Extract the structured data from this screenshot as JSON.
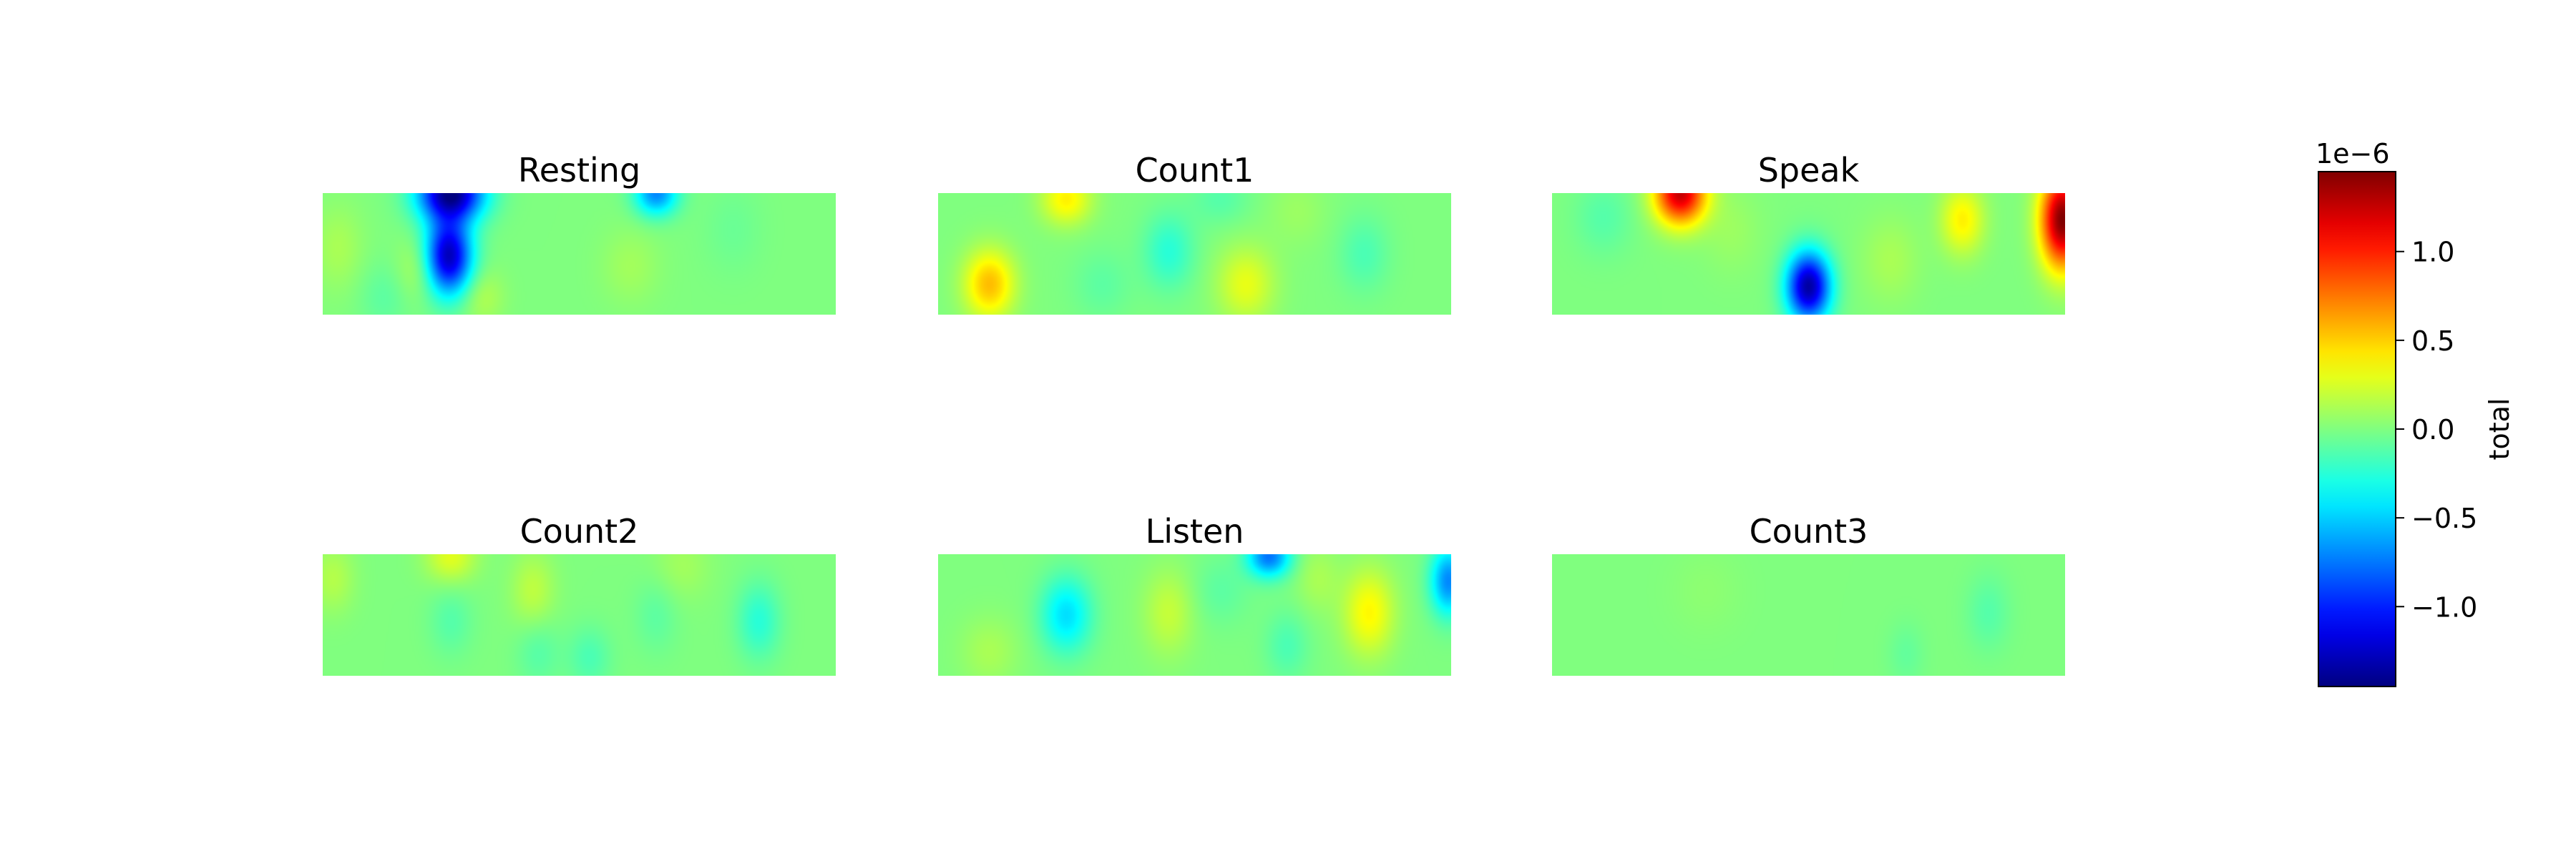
{
  "chart_data": {
    "type": "heatmap",
    "colormap": "jet",
    "value_range": [
      -1.45e-06,
      1.45e-06
    ],
    "layout": {
      "rows": 2,
      "cols": 3
    },
    "panels": [
      {
        "title": "Resting",
        "blobs": [
          {
            "x": 0.25,
            "y": 0.0,
            "value": -1.4e-06,
            "sx": 0.045,
            "sy": 0.16
          },
          {
            "x": 0.245,
            "y": 0.52,
            "value": -1.3e-06,
            "sx": 0.032,
            "sy": 0.22
          },
          {
            "x": 0.65,
            "y": 0.0,
            "value": -7e-07,
            "sx": 0.03,
            "sy": 0.13
          },
          {
            "x": 0.19,
            "y": 0.62,
            "value": 1.8e-07,
            "sx": 0.03,
            "sy": 0.18
          },
          {
            "x": 0.31,
            "y": 0.85,
            "value": 1.5e-07,
            "sx": 0.03,
            "sy": 0.16
          },
          {
            "x": 0.03,
            "y": 0.45,
            "value": 1.2e-07,
            "sx": 0.035,
            "sy": 0.25
          },
          {
            "x": 0.6,
            "y": 0.6,
            "value": 1e-07,
            "sx": 0.04,
            "sy": 0.22
          },
          {
            "x": 0.12,
            "y": 0.85,
            "value": -1e-07,
            "sx": 0.035,
            "sy": 0.2
          },
          {
            "x": 0.8,
            "y": 0.3,
            "value": -6e-08,
            "sx": 0.04,
            "sy": 0.25
          }
        ]
      },
      {
        "title": "Count1",
        "blobs": [
          {
            "x": 0.1,
            "y": 0.75,
            "value": 5.5e-07,
            "sx": 0.035,
            "sy": 0.2
          },
          {
            "x": 0.25,
            "y": 0.05,
            "value": 4e-07,
            "sx": 0.035,
            "sy": 0.15
          },
          {
            "x": 0.6,
            "y": 0.75,
            "value": 3e-07,
            "sx": 0.04,
            "sy": 0.22
          },
          {
            "x": 0.45,
            "y": 0.48,
            "value": -2.5e-07,
            "sx": 0.035,
            "sy": 0.22
          },
          {
            "x": 0.83,
            "y": 0.5,
            "value": -1.5e-07,
            "sx": 0.035,
            "sy": 0.22
          },
          {
            "x": 0.55,
            "y": 0.05,
            "value": -1.2e-07,
            "sx": 0.04,
            "sy": 0.15
          },
          {
            "x": 0.32,
            "y": 0.75,
            "value": -1e-07,
            "sx": 0.04,
            "sy": 0.2
          },
          {
            "x": 0.7,
            "y": 0.15,
            "value": 8e-08,
            "sx": 0.04,
            "sy": 0.2
          }
        ]
      },
      {
        "title": "Speak",
        "blobs": [
          {
            "x": 0.25,
            "y": 0.0,
            "value": 1.25e-06,
            "sx": 0.035,
            "sy": 0.18
          },
          {
            "x": 0.995,
            "y": 0.22,
            "value": 1.45e-06,
            "sx": 0.03,
            "sy": 0.28
          },
          {
            "x": 0.5,
            "y": 0.77,
            "value": -1.35e-06,
            "sx": 0.03,
            "sy": 0.2
          },
          {
            "x": 0.8,
            "y": 0.22,
            "value": 4e-07,
            "sx": 0.03,
            "sy": 0.2
          },
          {
            "x": 0.66,
            "y": 0.55,
            "value": 1.2e-07,
            "sx": 0.04,
            "sy": 0.25
          },
          {
            "x": 0.1,
            "y": 0.2,
            "value": -1.2e-07,
            "sx": 0.04,
            "sy": 0.22
          },
          {
            "x": 0.35,
            "y": 0.3,
            "value": 8e-08,
            "sx": 0.04,
            "sy": 0.25
          }
        ]
      },
      {
        "title": "Count2",
        "blobs": [
          {
            "x": 0.25,
            "y": 0.02,
            "value": 2.8e-07,
            "sx": 0.035,
            "sy": 0.15
          },
          {
            "x": 0.41,
            "y": 0.3,
            "value": 1.8e-07,
            "sx": 0.03,
            "sy": 0.22
          },
          {
            "x": 0.85,
            "y": 0.55,
            "value": -2.5e-07,
            "sx": 0.03,
            "sy": 0.22
          },
          {
            "x": 0.52,
            "y": 0.85,
            "value": -1.5e-07,
            "sx": 0.03,
            "sy": 0.18
          },
          {
            "x": 0.25,
            "y": 0.55,
            "value": -1.2e-07,
            "sx": 0.03,
            "sy": 0.2
          },
          {
            "x": 0.65,
            "y": 0.5,
            "value": -1e-07,
            "sx": 0.03,
            "sy": 0.22
          },
          {
            "x": 0.42,
            "y": 0.8,
            "value": -1.2e-07,
            "sx": 0.03,
            "sy": 0.2
          },
          {
            "x": 0.02,
            "y": 0.2,
            "value": 1.5e-07,
            "sx": 0.03,
            "sy": 0.2
          },
          {
            "x": 0.7,
            "y": 0.1,
            "value": 1e-07,
            "sx": 0.04,
            "sy": 0.2
          }
        ]
      },
      {
        "title": "Listen",
        "blobs": [
          {
            "x": 0.645,
            "y": 0.02,
            "value": -7.5e-07,
            "sx": 0.03,
            "sy": 0.12
          },
          {
            "x": 0.995,
            "y": 0.22,
            "value": -7e-07,
            "sx": 0.025,
            "sy": 0.2
          },
          {
            "x": 0.25,
            "y": 0.5,
            "value": -4.5e-07,
            "sx": 0.035,
            "sy": 0.22
          },
          {
            "x": 0.84,
            "y": 0.48,
            "value": 3.8e-07,
            "sx": 0.035,
            "sy": 0.25
          },
          {
            "x": 0.45,
            "y": 0.48,
            "value": 2e-07,
            "sx": 0.035,
            "sy": 0.25
          },
          {
            "x": 0.68,
            "y": 0.75,
            "value": -1.5e-07,
            "sx": 0.03,
            "sy": 0.2
          },
          {
            "x": 0.74,
            "y": 0.2,
            "value": 1.2e-07,
            "sx": 0.03,
            "sy": 0.2
          },
          {
            "x": 0.1,
            "y": 0.8,
            "value": 1.2e-07,
            "sx": 0.04,
            "sy": 0.2
          },
          {
            "x": 0.55,
            "y": 0.3,
            "value": -1e-07,
            "sx": 0.04,
            "sy": 0.2
          }
        ]
      },
      {
        "title": "Count3",
        "blobs": [
          {
            "x": 0.85,
            "y": 0.48,
            "value": -1.2e-07,
            "sx": 0.03,
            "sy": 0.22
          },
          {
            "x": 0.69,
            "y": 0.82,
            "value": -8e-08,
            "sx": 0.025,
            "sy": 0.18
          },
          {
            "x": 0.3,
            "y": 0.3,
            "value": 4e-08,
            "sx": 0.05,
            "sy": 0.25
          }
        ]
      }
    ],
    "colorbar": {
      "label": "total",
      "offset_text": "1e−6",
      "ticks": [
        {
          "value": 1e-06,
          "label": "1.0"
        },
        {
          "value": 5e-07,
          "label": "0.5"
        },
        {
          "value": 0.0,
          "label": "0.0"
        },
        {
          "value": -5e-07,
          "label": "−0.5"
        },
        {
          "value": -1e-06,
          "label": "−1.0"
        }
      ]
    }
  }
}
